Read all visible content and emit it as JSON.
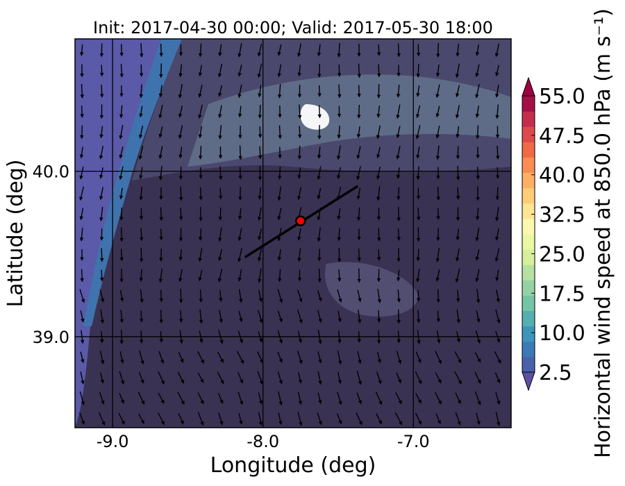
{
  "chart_data": {
    "type": "heatmap",
    "title": "Init: 2017-04-30 00:00; Valid: 2017-05-30 18:00",
    "xlabel": "Longitude (deg)",
    "ylabel": "Latitude (deg)",
    "xlim": [
      -9.25,
      -6.35
    ],
    "ylim": [
      38.45,
      40.8
    ],
    "x_ticks": [
      {
        "value": -9.0,
        "label": "-9.0"
      },
      {
        "value": -8.0,
        "label": "-8.0"
      },
      {
        "value": -7.0,
        "label": "-7.0"
      }
    ],
    "y_ticks": [
      {
        "value": 40.0,
        "label": "40.0"
      },
      {
        "value": 39.0,
        "label": "39.0"
      }
    ],
    "grid": true,
    "colorbar": {
      "label": "Horizontal wind speed at 850.0 hPa (m s⁻¹)",
      "min": 2.5,
      "max": 55.0,
      "step": 2.5,
      "extend": "both",
      "tick_labels": [
        "2.5",
        "10.0",
        "17.5",
        "25.0",
        "32.5",
        "40.0",
        "47.5",
        "55.0"
      ],
      "tick_values": [
        2.5,
        10.0,
        17.5,
        25.0,
        32.5,
        40.0,
        47.5,
        55.0
      ],
      "colors": [
        "#5e4fa2",
        "#4961ab",
        "#3b7ab7",
        "#3d95b8",
        "#55aeb0",
        "#74c5a5",
        "#95d2a3",
        "#b7e1a1",
        "#d7ef9b",
        "#ecf7a2",
        "#fbf8b0",
        "#fee593",
        "#fdcd79",
        "#fdb064",
        "#f88e53",
        "#ef6a45",
        "#dd4a4c",
        "#c32f4b",
        "#a31047",
        "#9e0142"
      ]
    },
    "line": {
      "start": [
        -8.12,
        39.48
      ],
      "end": [
        -7.37,
        39.91
      ]
    },
    "marker": {
      "lon": -7.75,
      "lat": 39.7,
      "color": "#ff0000"
    },
    "field_description_colors": {
      "low": "#3a3252",
      "mid": "#4e4a70",
      "coastal_band": "#3f73ad",
      "ocean": "#5a5aa8",
      "high": "#f4f6f8"
    }
  }
}
